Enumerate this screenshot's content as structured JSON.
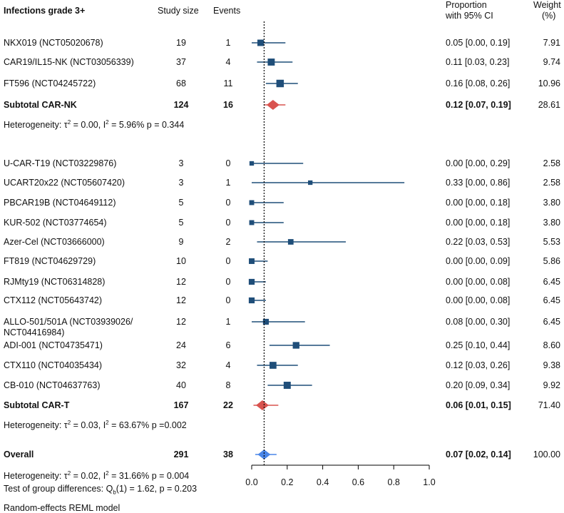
{
  "chart_data": {
    "type": "forest",
    "title": "Infections grade 3+",
    "columns": {
      "study_size": "Study size",
      "events": "Events",
      "proportion_line1": "Proportion",
      "proportion_line2": "with 95% CI",
      "weight_line1": "Weight",
      "weight_line2": "(%)"
    },
    "groups": [
      {
        "name": "Subtotal CAR-NK",
        "studies": [
          {
            "label": "NKX019 (NCT05020678)",
            "n": "19",
            "events": "1",
            "est": 0.05,
            "lo": 0.0,
            "hi": 0.19,
            "ci_text": "0.05 [0.00, 0.19]",
            "weight": "7.91"
          },
          {
            "label": "CAR19/IL15-NK (NCT03056339)",
            "n": "37",
            "events": "4",
            "est": 0.11,
            "lo": 0.03,
            "hi": 0.23,
            "ci_text": "0.11 [0.03, 0.23]",
            "weight": "9.74"
          },
          {
            "label": "FT596 (NCT04245722)",
            "n": "68",
            "events": "11",
            "est": 0.16,
            "lo": 0.08,
            "hi": 0.26,
            "ci_text": "0.16 [0.08, 0.26]",
            "weight": "10.96"
          }
        ],
        "subtotal": {
          "label": "Subtotal CAR-NK",
          "n": "124",
          "events": "16",
          "est": 0.12,
          "lo": 0.07,
          "hi": 0.19,
          "ci_text": "0.12 [0.07, 0.19]",
          "weight": "28.61",
          "color": "#d9534f"
        },
        "heterogeneity": {
          "prefix": "Heterogeneity: τ",
          "sup1": "2",
          "mid": " = 0.00, I",
          "sup2": "2",
          "suffix": " = 5.96% p = 0.344"
        }
      },
      {
        "name": "Subtotal CAR-T",
        "studies": [
          {
            "label": "U-CAR-T19 (NCT03229876)",
            "n": "3",
            "events": "0",
            "est": 0.0,
            "lo": 0.0,
            "hi": 0.29,
            "ci_text": "0.00 [0.00, 0.29]",
            "weight": "2.58"
          },
          {
            "label": "UCART20x22 (NCT05607420)",
            "n": "3",
            "events": "1",
            "est": 0.33,
            "lo": 0.0,
            "hi": 0.86,
            "ci_text": "0.33 [0.00, 0.86]",
            "weight": "2.58"
          },
          {
            "label": "PBCAR19B (NCT04649112)",
            "n": "5",
            "events": "0",
            "est": 0.0,
            "lo": 0.0,
            "hi": 0.18,
            "ci_text": "0.00 [0.00, 0.18]",
            "weight": "3.80"
          },
          {
            "label": "KUR-502 (NCT03774654)",
            "n": "5",
            "events": "0",
            "est": 0.0,
            "lo": 0.0,
            "hi": 0.18,
            "ci_text": "0.00 [0.00, 0.18]",
            "weight": "3.80"
          },
          {
            "label": "Azer-Cel (NCT03666000)",
            "n": "9",
            "events": "2",
            "est": 0.22,
            "lo": 0.03,
            "hi": 0.53,
            "ci_text": "0.22 [0.03, 0.53]",
            "weight": "5.53"
          },
          {
            "label": "FT819 (NCT04629729)",
            "n": "10",
            "events": "0",
            "est": 0.0,
            "lo": 0.0,
            "hi": 0.09,
            "ci_text": "0.00 [0.00, 0.09]",
            "weight": "5.86"
          },
          {
            "label": "RJMty19 (NCT06314828)",
            "n": "12",
            "events": "0",
            "est": 0.0,
            "lo": 0.0,
            "hi": 0.08,
            "ci_text": "0.00 [0.00, 0.08]",
            "weight": "6.45"
          },
          {
            "label": "CTX112 (NCT05643742)",
            "n": "12",
            "events": "0",
            "est": 0.0,
            "lo": 0.0,
            "hi": 0.08,
            "ci_text": "0.00 [0.00, 0.08]",
            "weight": "6.45"
          },
          {
            "label": "ALLO-501/501A (NCT03939026/",
            "label2": "NCT04416984)",
            "n": "12",
            "events": "1",
            "est": 0.08,
            "lo": 0.0,
            "hi": 0.3,
            "ci_text": "0.08 [0.00, 0.30]",
            "weight": "6.45"
          },
          {
            "label": "ADI-001 (NCT04735471)",
            "n": "24",
            "events": "6",
            "est": 0.25,
            "lo": 0.1,
            "hi": 0.44,
            "ci_text": "0.25 [0.10, 0.44]",
            "weight": "8.60"
          },
          {
            "label": "CTX110 (NCT04035434)",
            "n": "32",
            "events": "4",
            "est": 0.12,
            "lo": 0.03,
            "hi": 0.26,
            "ci_text": "0.12 [0.03, 0.26]",
            "weight": "9.38"
          },
          {
            "label": "CB-010 (NCT04637763)",
            "n": "40",
            "events": "8",
            "est": 0.2,
            "lo": 0.09,
            "hi": 0.34,
            "ci_text": "0.20 [0.09, 0.34]",
            "weight": "9.92"
          }
        ],
        "subtotal": {
          "label": "Subtotal CAR-T",
          "n": "167",
          "events": "22",
          "est": 0.06,
          "lo": 0.01,
          "hi": 0.15,
          "ci_text": "0.06 [0.01, 0.15]",
          "weight": "71.40",
          "color": "#d9534f"
        },
        "heterogeneity": {
          "prefix": "Heterogeneity: τ",
          "sup1": "2",
          "mid": " = 0.03, I",
          "sup2": "2",
          "suffix": " = 63.67% p =0.002"
        }
      }
    ],
    "overall": {
      "label": "Overall",
      "n": "291",
      "events": "38",
      "est": 0.07,
      "lo": 0.02,
      "hi": 0.14,
      "ci_text": "0.07 [0.02, 0.14]",
      "weight": "100.00",
      "color": "#4a86e8"
    },
    "overall_heterogeneity": {
      "prefix": "Heterogeneity: τ",
      "sup1": "2",
      "mid": " = 0.02, I",
      "sup2": "2",
      "suffix": " = 31.66% p = 0.004"
    },
    "group_test": {
      "prefix": "Test of group differences: Q",
      "sub": "b",
      "suffix": "(1) = 1.62, p = 0.203"
    },
    "model": "Random-effects REML model",
    "xlim": [
      0.0,
      1.0
    ],
    "xticks": [
      "0.0",
      "0.2",
      "0.4",
      "0.6",
      "0.8",
      "1.0"
    ],
    "reference_line": 0.07,
    "square_color": "#1f4e79",
    "line_color": "#1f4e79"
  }
}
